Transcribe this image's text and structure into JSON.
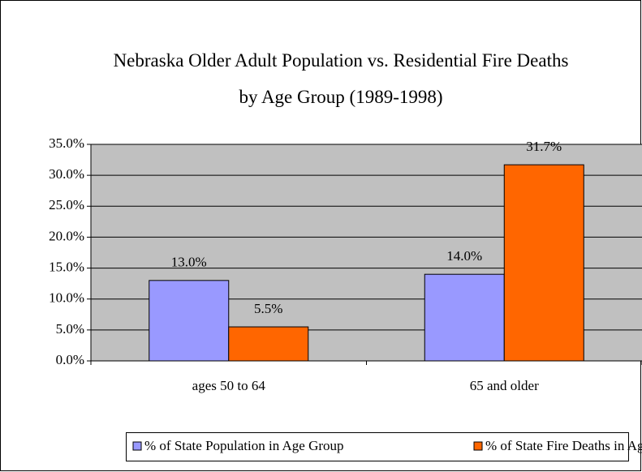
{
  "chart_data": {
    "type": "bar",
    "title": "Nebraska Older Adult Population vs. Residential Fire Deaths by Age Group (1989-1998)",
    "categories": [
      "ages 50 to 64",
      "65 and older"
    ],
    "series": [
      {
        "name": "% of State Population in Age Group",
        "color": "#9999ff",
        "values": [
          13.0,
          14.0
        ],
        "value_labels": [
          "13.0%",
          "14.0%"
        ]
      },
      {
        "name": "% of State Fire Deaths in Age Group",
        "color": "#ff6600",
        "values": [
          5.5,
          31.7
        ],
        "value_labels": [
          "5.5%",
          "31.7%"
        ]
      }
    ],
    "ylim": [
      0,
      35
    ],
    "yticks": [
      {
        "value": 0,
        "label": "0.0%"
      },
      {
        "value": 5,
        "label": "5.0%"
      },
      {
        "value": 10,
        "label": "10.0%"
      },
      {
        "value": 15,
        "label": "15.0%"
      },
      {
        "value": 20,
        "label": "20.0%"
      },
      {
        "value": 25,
        "label": "25.0%"
      },
      {
        "value": 30,
        "label": "30.0%"
      },
      {
        "value": 35,
        "label": "35.0%"
      }
    ],
    "grid": true,
    "legend": "bottom"
  }
}
